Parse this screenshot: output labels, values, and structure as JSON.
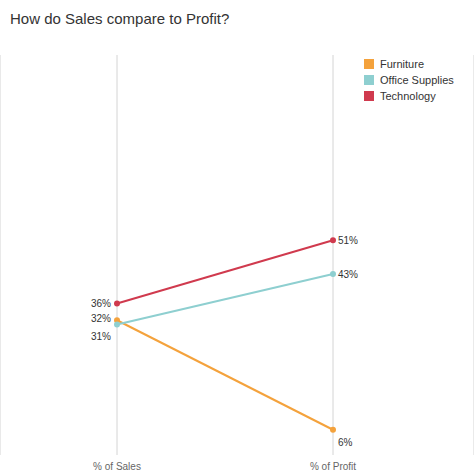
{
  "chart_data": {
    "type": "line",
    "title": "How do Sales compare to Profit?",
    "categories": [
      "% of Sales",
      "% of Profit"
    ],
    "series": [
      {
        "name": "Furniture",
        "color": "#f4a23c",
        "values": [
          32,
          6
        ],
        "value_labels": [
          "32%",
          "6%"
        ]
      },
      {
        "name": "Office Supplies",
        "color": "#8ecfd0",
        "values": [
          31,
          43
        ],
        "value_labels": [
          "31%",
          "43%"
        ]
      },
      {
        "name": "Technology",
        "color": "#d03a4e",
        "values": [
          36,
          51
        ],
        "value_labels": [
          "36%",
          "51%"
        ]
      }
    ],
    "ylim": [
      0,
      95
    ],
    "grid": true,
    "legend": "top-right",
    "data_labels": true,
    "tick_labels": "x",
    "marker": "circle"
  }
}
